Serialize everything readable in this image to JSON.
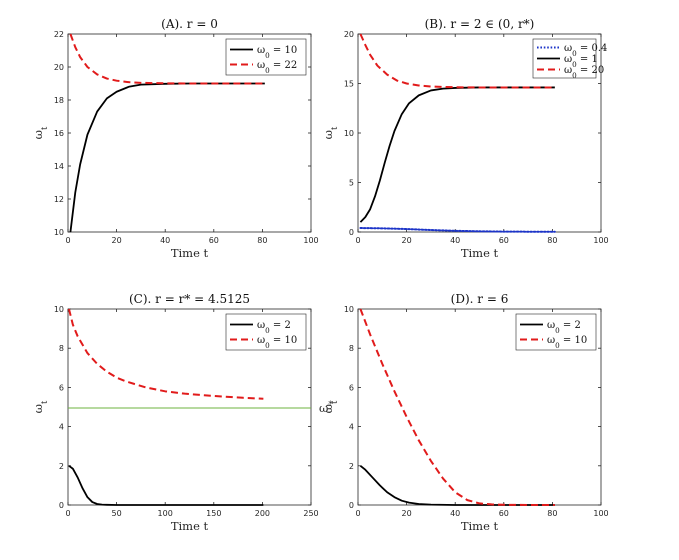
{
  "chart_data": [
    {
      "type": "line",
      "title": "(A). r = 0",
      "xlabel": "Time t",
      "ylabel": "ω_t",
      "xlim": [
        0,
        100
      ],
      "ylim": [
        10,
        22
      ],
      "xticks": [
        "0",
        "20",
        "40",
        "60",
        "80",
        "100"
      ],
      "yticks": [
        "10",
        "12",
        "14",
        "16",
        "18",
        "20",
        "22"
      ],
      "legend_position": "top-right",
      "right_label": "",
      "series": [
        {
          "name": "ω0 = 10",
          "style": "solid",
          "color": "#000000",
          "x": [
            1,
            3,
            5,
            8,
            12,
            16,
            20,
            25,
            30,
            40,
            50,
            60,
            70,
            81
          ],
          "y": [
            10,
            12.4,
            14.1,
            15.9,
            17.3,
            18.1,
            18.5,
            18.8,
            18.93,
            18.98,
            19,
            19,
            19,
            19
          ]
        },
        {
          "name": "ω0 = 22",
          "style": "dashed",
          "color": "#e11b1b",
          "x": [
            1,
            3,
            5,
            8,
            12,
            16,
            20,
            25,
            30,
            40,
            50,
            60,
            70,
            81
          ],
          "y": [
            22,
            21.2,
            20.6,
            20.0,
            19.55,
            19.3,
            19.17,
            19.08,
            19.04,
            19.01,
            19,
            19,
            19,
            19
          ]
        }
      ]
    },
    {
      "type": "line",
      "title": "(B). r = 2 ∈ (0, r*)",
      "xlabel": "Time t",
      "ylabel": "ω_t",
      "xlim": [
        0,
        100
      ],
      "ylim": [
        0,
        20
      ],
      "xticks": [
        "0",
        "20",
        "40",
        "60",
        "80",
        "100"
      ],
      "yticks": [
        "0",
        "5",
        "10",
        "15",
        "20"
      ],
      "legend_position": "top-right",
      "right_label": "",
      "series": [
        {
          "name": "ω0 = 0.4",
          "style": "dotted",
          "color": "#1c34c8",
          "x": [
            1,
            10,
            20,
            30,
            40,
            50,
            60,
            70,
            81
          ],
          "y": [
            0.4,
            0.37,
            0.3,
            0.2,
            0.12,
            0.07,
            0.04,
            0.03,
            0.02
          ]
        },
        {
          "name": "ω0 = 1",
          "style": "solid",
          "color": "#000000",
          "x": [
            1,
            3,
            5,
            7,
            9,
            11,
            13,
            15,
            18,
            21,
            25,
            30,
            35,
            40,
            50,
            60,
            70,
            81
          ],
          "y": [
            1,
            1.5,
            2.3,
            3.6,
            5.2,
            7.0,
            8.7,
            10.2,
            11.9,
            13.0,
            13.8,
            14.3,
            14.48,
            14.55,
            14.6,
            14.6,
            14.6,
            14.6
          ]
        },
        {
          "name": "ω0 = 20",
          "style": "dashed",
          "color": "#e11b1b",
          "x": [
            1,
            3,
            5,
            8,
            12,
            16,
            20,
            25,
            30,
            40,
            50,
            60,
            70,
            81
          ],
          "y": [
            20,
            18.9,
            17.9,
            16.8,
            15.9,
            15.3,
            15.0,
            14.8,
            14.7,
            14.62,
            14.6,
            14.6,
            14.6,
            14.6
          ]
        }
      ]
    },
    {
      "type": "line",
      "title": "(C). r = r* = 4.5125",
      "xlabel": "Time t",
      "ylabel": "ω_t",
      "xlim": [
        0,
        250
      ],
      "ylim": [
        0,
        10
      ],
      "xticks": [
        "0",
        "50",
        "100",
        "150",
        "200",
        "250"
      ],
      "yticks": [
        "0",
        "2",
        "4",
        "6",
        "8",
        "10"
      ],
      "legend_position": "top-right",
      "right_label": "ω*",
      "series": [
        {
          "name": "ω0 = 2",
          "style": "solid",
          "color": "#000000",
          "x": [
            1,
            5,
            10,
            15,
            20,
            25,
            30,
            35,
            40,
            50,
            100,
            150,
            201
          ],
          "y": [
            2,
            1.85,
            1.4,
            0.85,
            0.4,
            0.15,
            0.05,
            0.02,
            0.01,
            0,
            0,
            0,
            0
          ]
        },
        {
          "name": "ω0 = 10",
          "style": "dashed",
          "color": "#e11b1b",
          "x": [
            1,
            5,
            10,
            20,
            30,
            40,
            50,
            60,
            80,
            100,
            120,
            140,
            160,
            180,
            201
          ],
          "y": [
            10,
            9.2,
            8.6,
            7.75,
            7.2,
            6.8,
            6.5,
            6.3,
            6.0,
            5.8,
            5.68,
            5.6,
            5.53,
            5.47,
            5.42
          ]
        },
        {
          "name": "ω*",
          "style": "solid-thin",
          "color": "#6cb33f",
          "legend": false,
          "x": [
            0,
            250
          ],
          "y": [
            4.95,
            4.95
          ]
        }
      ]
    },
    {
      "type": "line",
      "title": "(D). r = 6",
      "xlabel": "Time t",
      "ylabel": "ω_t",
      "xlim": [
        0,
        100
      ],
      "ylim": [
        0,
        10
      ],
      "xticks": [
        "0",
        "20",
        "40",
        "60",
        "80",
        "100"
      ],
      "yticks": [
        "0",
        "2",
        "4",
        "6",
        "8",
        "10"
      ],
      "legend_position": "top-right",
      "right_label": "",
      "series": [
        {
          "name": "ω0 = 2",
          "style": "solid",
          "color": "#000000",
          "x": [
            1,
            3,
            6,
            9,
            12,
            15,
            18,
            21,
            25,
            30,
            40,
            50,
            60,
            70,
            81
          ],
          "y": [
            2,
            1.8,
            1.4,
            1.0,
            0.65,
            0.4,
            0.22,
            0.12,
            0.05,
            0.02,
            0,
            0,
            0,
            0,
            0
          ]
        },
        {
          "name": "ω0 = 10",
          "style": "dashed",
          "color": "#e11b1b",
          "x": [
            1,
            5,
            10,
            15,
            20,
            25,
            30,
            35,
            40,
            45,
            50,
            55,
            60,
            70,
            81
          ],
          "y": [
            10,
            8.7,
            7.2,
            5.8,
            4.5,
            3.3,
            2.25,
            1.35,
            0.65,
            0.25,
            0.08,
            0.03,
            0.01,
            0,
            0
          ]
        }
      ]
    }
  ]
}
